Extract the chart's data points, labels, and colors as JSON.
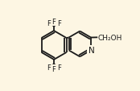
{
  "bg_color": "#fdf6e3",
  "bond_color": "#1a1a1a",
  "atom_color": "#1a1a1a",
  "bond_lw": 1.3,
  "font_size": 6.5,
  "fig_width": 1.74,
  "fig_height": 1.14,
  "dpi": 100,
  "xlim": [
    -0.05,
    1.05
  ],
  "ylim": [
    -0.05,
    1.05
  ]
}
